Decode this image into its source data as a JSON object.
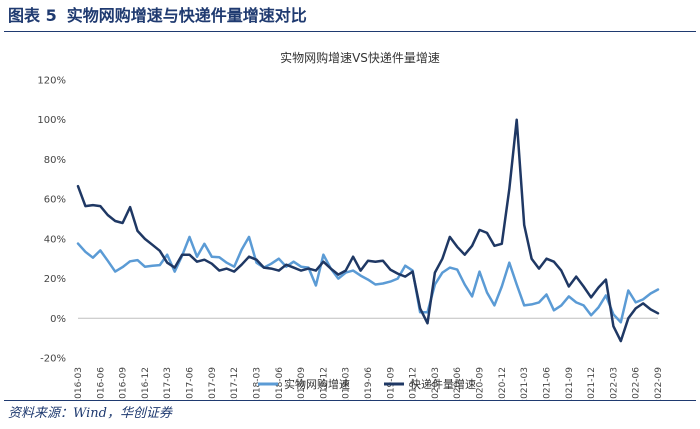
{
  "figure": {
    "number_label": "图表 5",
    "title": "实物网购增速与快递件量增速对比",
    "source": "资料来源：Wind，华创证券"
  },
  "colors": {
    "accent": "#1f3a70",
    "series_light": "#5b9bd5",
    "series_dark": "#1f3864",
    "zero_line": "#bfbfbf"
  },
  "chart_data": {
    "type": "line",
    "title": "实物网购增速VS快递件量增速",
    "xlabel": "",
    "ylabel": "",
    "ylim": [
      -20,
      120
    ],
    "ytick_labels": [
      "-20%",
      "0%",
      "20%",
      "40%",
      "60%",
      "80%",
      "100%",
      "120%"
    ],
    "grid": false,
    "legend_position": "bottom",
    "x": [
      "2016-03",
      "2016-04",
      "2016-05",
      "2016-06",
      "2016-07",
      "2016-08",
      "2016-09",
      "2016-10",
      "2016-11",
      "2016-12",
      "2017-01",
      "2017-02",
      "2017-03",
      "2017-04",
      "2017-05",
      "2017-06",
      "2017-07",
      "2017-08",
      "2017-09",
      "2017-10",
      "2017-11",
      "2017-12",
      "2018-01",
      "2018-02",
      "2018-03",
      "2018-04",
      "2018-05",
      "2018-06",
      "2018-07",
      "2018-08",
      "2018-09",
      "2018-10",
      "2018-11",
      "2018-12",
      "2019-01",
      "2019-02",
      "2019-03",
      "2019-04",
      "2019-05",
      "2019-06",
      "2019-07",
      "2019-08",
      "2019-09",
      "2019-10",
      "2019-11",
      "2019-12",
      "2020-01",
      "2020-02",
      "2020-03",
      "2020-04",
      "2020-05",
      "2020-06",
      "2020-07",
      "2020-08",
      "2020-09",
      "2020-10",
      "2020-11",
      "2020-12",
      "2021-01",
      "2021-02",
      "2021-03",
      "2021-04",
      "2021-05",
      "2021-06",
      "2021-07",
      "2021-08",
      "2021-09",
      "2021-10",
      "2021-11",
      "2021-12",
      "2022-01",
      "2022-02",
      "2022-03",
      "2022-04",
      "2022-05",
      "2022-06",
      "2022-07",
      "2022-08",
      "2022-09"
    ],
    "x_tick_labels": [
      "2016-03",
      "2016-06",
      "2016-09",
      "2016-12",
      "2017-03",
      "2017-06",
      "2017-09",
      "2017-12",
      "2018-03",
      "2018-06",
      "2018-09",
      "2018-12",
      "2019-03",
      "2019-06",
      "2019-09",
      "2019-12",
      "2020-03",
      "2020-06",
      "2020-09",
      "2020-12",
      "2021-03",
      "2021-06",
      "2021-09",
      "2021-12",
      "2022-03",
      "2022-06",
      "2022-09"
    ],
    "series": [
      {
        "name": "实物网购增速",
        "values": [
          37.6,
          33.5,
          30.5,
          34.2,
          29.0,
          23.5,
          25.8,
          28.7,
          29.3,
          26.0,
          26.5,
          26.8,
          32.0,
          23.5,
          31.5,
          41.0,
          31.0,
          37.5,
          31.0,
          30.7,
          28.0,
          26.0,
          34.5,
          41.0,
          28.0,
          25.5,
          27.5,
          30.0,
          26.0,
          28.5,
          26.0,
          25.5,
          16.5,
          32.0,
          25.0,
          20.0,
          23.0,
          24.0,
          21.5,
          19.5,
          17.0,
          17.5,
          18.5,
          20.0,
          26.5,
          24.0,
          3.0,
          3.0,
          17.0,
          23.0,
          25.5,
          24.5,
          17.0,
          11.0,
          23.5,
          13.0,
          6.5,
          16.0,
          28.0,
          17.0,
          6.5,
          7.0,
          8.0,
          12.0,
          4.0,
          6.5,
          11.0,
          8.0,
          6.5,
          1.5,
          5.5,
          11.5,
          2.0,
          -2.0,
          14.0,
          8.0,
          9.5,
          12.5,
          14.5
        ]
      },
      {
        "name": "快递件量增速",
        "values": [
          66.5,
          56.5,
          57.0,
          56.5,
          52.0,
          49.0,
          48.0,
          56.0,
          44.0,
          40.0,
          37.0,
          34.0,
          28.0,
          25.5,
          32.0,
          32.0,
          28.5,
          29.5,
          27.5,
          24.0,
          25.0,
          23.5,
          27.0,
          31.0,
          29.5,
          25.5,
          25.0,
          24.0,
          27.0,
          25.5,
          24.0,
          25.0,
          24.0,
          28.5,
          25.0,
          22.0,
          24.0,
          31.0,
          24.0,
          29.0,
          28.5,
          29.0,
          24.5,
          22.5,
          21.0,
          23.5,
          5.0,
          -2.5,
          23.0,
          30.0,
          41.0,
          36.0,
          32.0,
          36.5,
          44.5,
          43.0,
          36.5,
          37.5,
          65.0,
          100.0,
          47.0,
          30.0,
          25.0,
          30.0,
          28.5,
          24.0,
          16.0,
          21.0,
          16.0,
          10.5,
          15.5,
          19.5,
          -4.0,
          -11.5,
          0.0,
          5.0,
          7.5,
          4.5,
          2.5
        ]
      }
    ]
  }
}
